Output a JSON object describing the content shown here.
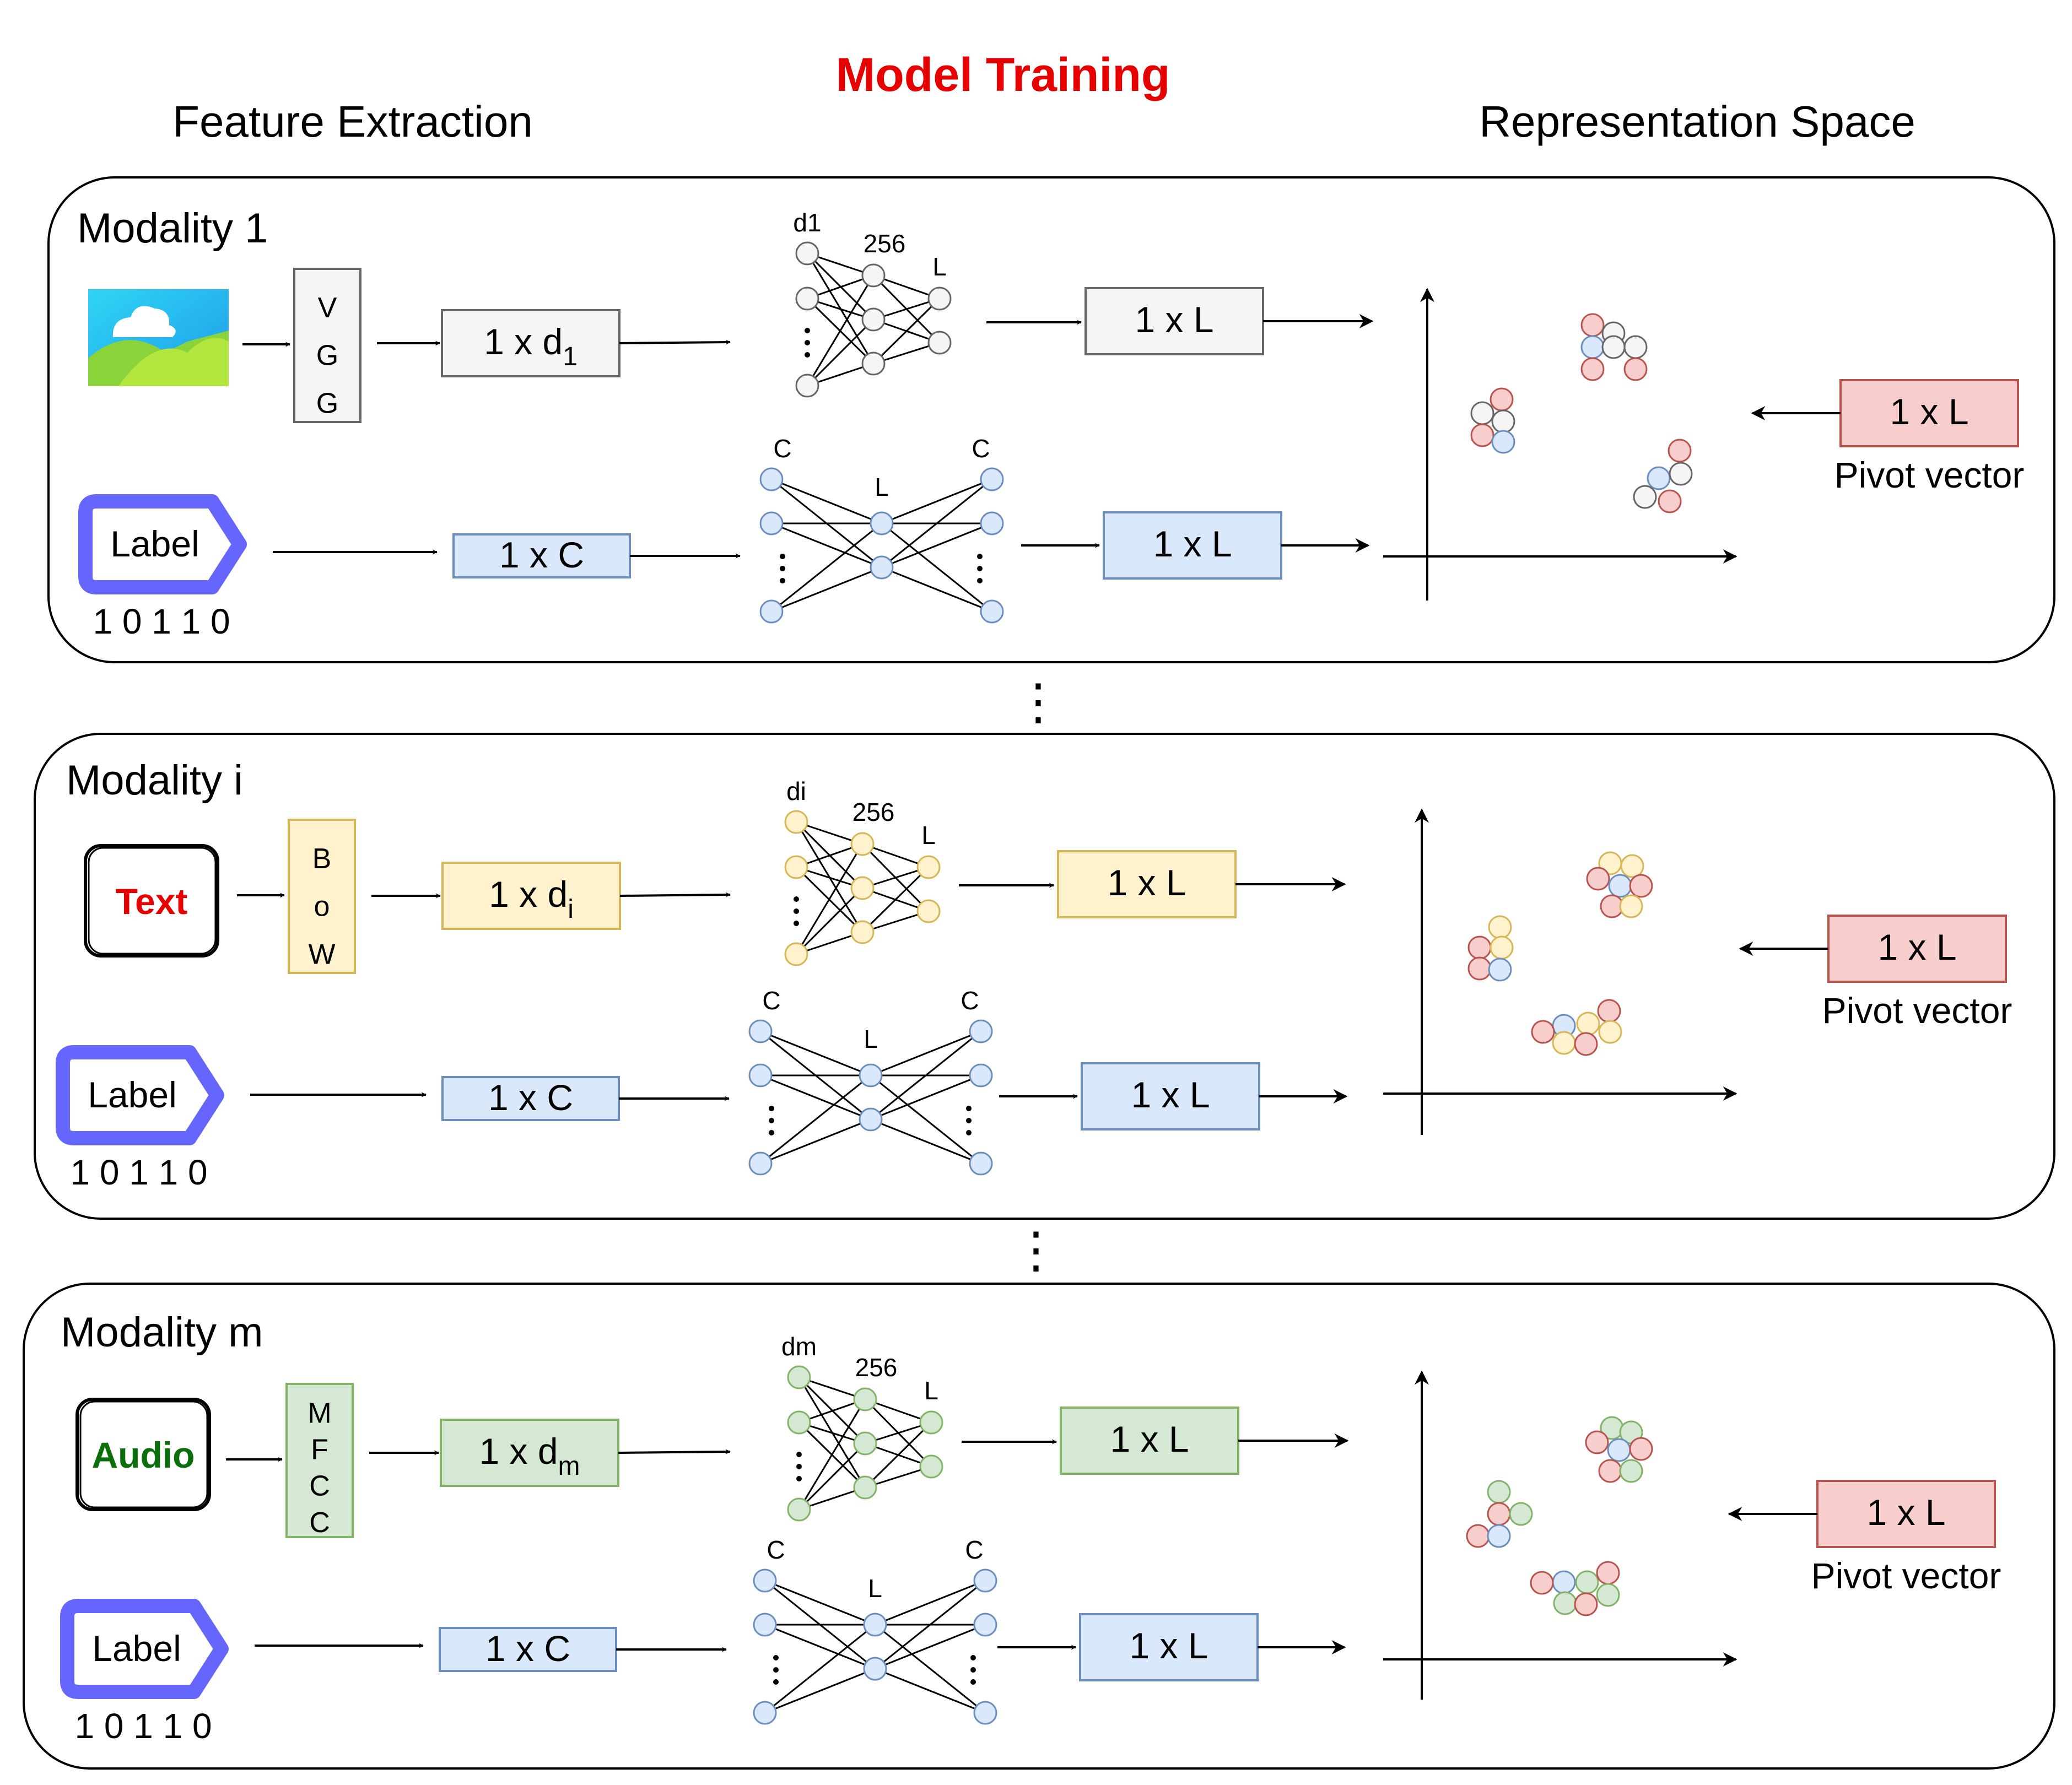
{
  "header": {
    "title": "Model Training",
    "left": "Feature Extraction",
    "right": "Representation Space"
  },
  "colors": {
    "red_text": "#e60000",
    "green_text": "#0a6e0a",
    "gray_fill": "#f5f5f5",
    "gray_stroke": "#666666",
    "blue_fill": "#dae8fc",
    "blue_stroke": "#6c8ebf",
    "yellow_fill": "#fff2cc",
    "yellow_stroke": "#d6b656",
    "green_fill": "#d5e8d4",
    "green_stroke": "#82b366",
    "pink_fill": "#f8cecc",
    "pink_stroke": "#b85450",
    "label_tag": "#6666ff"
  },
  "panels": [
    {
      "title": "Modality 1",
      "input_kind": "image",
      "input_icon": "image-icon",
      "input_text": "",
      "extractor": [
        "V",
        "G",
        "G"
      ],
      "feature_base": "1 x d",
      "feature_sub": "1",
      "net_labels": [
        "d1",
        "256",
        "L"
      ],
      "embed_label": "1 x L",
      "label_tag": "Label",
      "label_bits": "1 0 1 1 0",
      "label_vec": "1 x C",
      "label_net": [
        "C",
        "L",
        "C"
      ],
      "label_embed": "1 x L",
      "pivot": "1 x L",
      "pivot_caption": "Pivot vector",
      "theme": "gray"
    },
    {
      "title": "Modality i",
      "input_kind": "text",
      "input_icon": "text-icon",
      "input_text": "Text",
      "extractor": [
        "B",
        "o",
        "W"
      ],
      "feature_base": "1 x d",
      "feature_sub": "i",
      "net_labels": [
        "di",
        "256",
        "L"
      ],
      "embed_label": "1 x L",
      "label_tag": "Label",
      "label_bits": "1 0 1 1 0",
      "label_vec": "1 x C",
      "label_net": [
        "C",
        "L",
        "C"
      ],
      "label_embed": "1 x L",
      "pivot": "1 x L",
      "pivot_caption": "Pivot vector",
      "theme": "yellow"
    },
    {
      "title": "Modality m",
      "input_kind": "audio",
      "input_icon": "audio-icon",
      "input_text": "Audio",
      "extractor": [
        "M",
        "F",
        "C",
        "C"
      ],
      "feature_base": "1 x d",
      "feature_sub": "m",
      "net_labels": [
        "dm",
        "256",
        "L"
      ],
      "embed_label": "1 x L",
      "label_tag": "Label",
      "label_bits": "1 0 1 1 0",
      "label_vec": "1 x C",
      "label_net": [
        "C",
        "L",
        "C"
      ],
      "label_embed": "1 x L",
      "pivot": "1 x L",
      "pivot_caption": "Pivot vector",
      "theme": "green"
    }
  ],
  "separator": "⋮"
}
